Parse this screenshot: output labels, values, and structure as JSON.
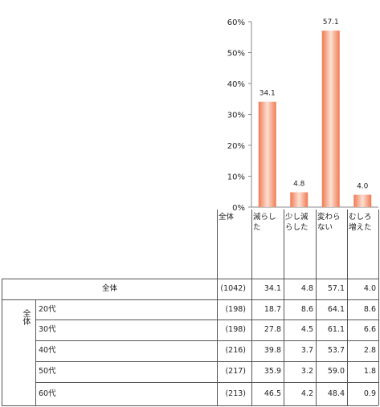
{
  "chart_data": {
    "type": "bar",
    "categories": [
      "減らした",
      "少し減らした",
      "変わらない",
      "むしろ増えた"
    ],
    "values": [
      34.1,
      4.8,
      57.1,
      4.0
    ],
    "data_labels": [
      "34.1",
      "4.8",
      "57.1",
      "4.0"
    ],
    "ylim": [
      0,
      60
    ],
    "yticks": [
      "0%",
      "10%",
      "20%",
      "30%",
      "40%",
      "50%",
      "60%"
    ],
    "grid": false,
    "legend": "none",
    "bar_color_light": "#fde0d3",
    "bar_color_dark": "#f07a52"
  },
  "table": {
    "header_total": "全体",
    "col_headers": [
      "減らした",
      "少し減らした",
      "変わらない",
      "むしろ増えた"
    ],
    "group_label": "全体",
    "total_row": {
      "label": "全体",
      "n": "(1042)",
      "values": [
        "34.1",
        "4.8",
        "57.1",
        "4.0"
      ]
    },
    "rows": [
      {
        "label": "20代",
        "n": "(198)",
        "values": [
          "18.7",
          "8.6",
          "64.1",
          "8.6"
        ]
      },
      {
        "label": "30代",
        "n": "(198)",
        "values": [
          "27.8",
          "4.5",
          "61.1",
          "6.6"
        ]
      },
      {
        "label": "40代",
        "n": "(216)",
        "values": [
          "39.8",
          "3.7",
          "53.7",
          "2.8"
        ]
      },
      {
        "label": "50代",
        "n": "(217)",
        "values": [
          "35.9",
          "3.2",
          "59.0",
          "1.8"
        ]
      },
      {
        "label": "60代",
        "n": "(213)",
        "values": [
          "46.5",
          "4.2",
          "48.4",
          "0.9"
        ]
      }
    ]
  }
}
